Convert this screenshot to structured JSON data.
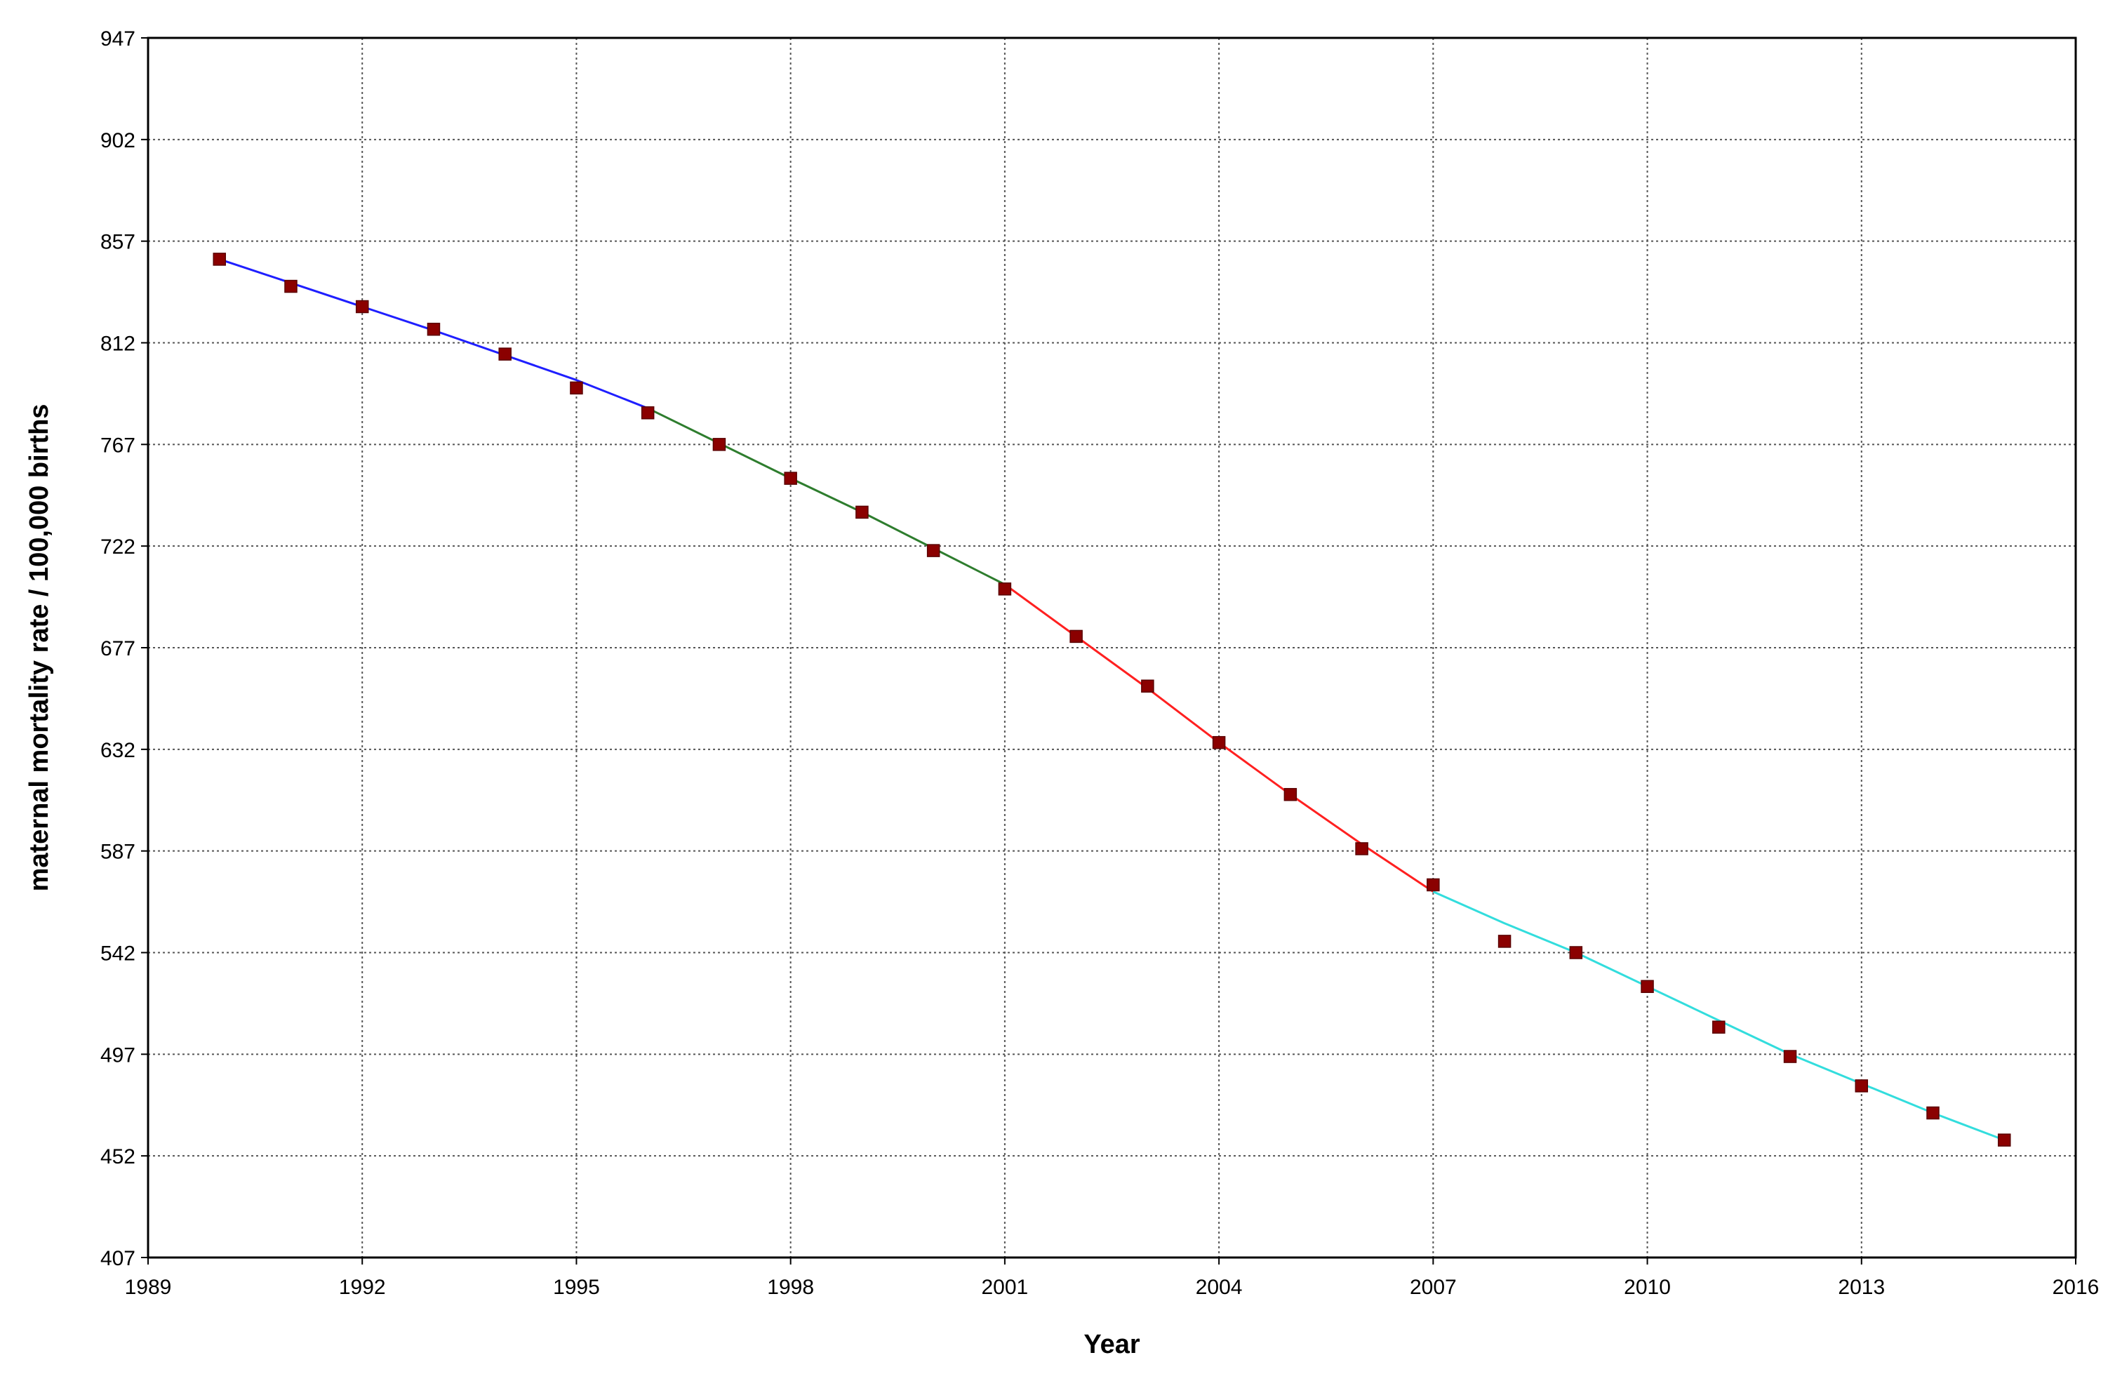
{
  "chart_data": {
    "type": "line",
    "title": "",
    "xlabel": "Year",
    "ylabel": "maternal mortality rate / 100,000 births",
    "xlim": [
      1989,
      2016
    ],
    "ylim": [
      407,
      947
    ],
    "x_ticks": [
      "1989",
      "1992",
      "1995",
      "1998",
      "2001",
      "2004",
      "2007",
      "2010",
      "2013",
      "2016"
    ],
    "y_ticks": [
      "407",
      "452",
      "497",
      "542",
      "587",
      "632",
      "677",
      "722",
      "767",
      "812",
      "857",
      "902",
      "947"
    ],
    "grid": true,
    "legend": "none",
    "marker_color": "#8b0000",
    "points": [
      {
        "x": 1990,
        "y": 849
      },
      {
        "x": 1991,
        "y": 837
      },
      {
        "x": 1992,
        "y": 828
      },
      {
        "x": 1993,
        "y": 818
      },
      {
        "x": 1994,
        "y": 807
      },
      {
        "x": 1995,
        "y": 792
      },
      {
        "x": 1996,
        "y": 781
      },
      {
        "x": 1997,
        "y": 767
      },
      {
        "x": 1998,
        "y": 752
      },
      {
        "x": 1999,
        "y": 737
      },
      {
        "x": 2000,
        "y": 720
      },
      {
        "x": 2001,
        "y": 703
      },
      {
        "x": 2002,
        "y": 682
      },
      {
        "x": 2003,
        "y": 660
      },
      {
        "x": 2004,
        "y": 635
      },
      {
        "x": 2005,
        "y": 612
      },
      {
        "x": 2006,
        "y": 588
      },
      {
        "x": 2007,
        "y": 572
      },
      {
        "x": 2008,
        "y": 547
      },
      {
        "x": 2009,
        "y": 542
      },
      {
        "x": 2010,
        "y": 527
      },
      {
        "x": 2011,
        "y": 509
      },
      {
        "x": 2012,
        "y": 496
      },
      {
        "x": 2013,
        "y": 483
      },
      {
        "x": 2014,
        "y": 471
      },
      {
        "x": 2015,
        "y": 459
      }
    ],
    "segments": [
      {
        "color": "#1f1fff",
        "points": [
          [
            1990,
            849
          ],
          [
            1991,
            838.5
          ],
          [
            1992,
            828
          ],
          [
            1993,
            817.5
          ],
          [
            1994,
            806.5
          ],
          [
            1995,
            795.5
          ],
          [
            1996,
            783
          ]
        ]
      },
      {
        "color": "#2e7d2e",
        "points": [
          [
            1996,
            783
          ],
          [
            1997,
            767.5
          ],
          [
            1998,
            752
          ],
          [
            1999,
            737
          ],
          [
            2000,
            721
          ],
          [
            2001,
            705
          ]
        ]
      },
      {
        "color": "#ff2020",
        "points": [
          [
            2001,
            705
          ],
          [
            2002,
            682
          ],
          [
            2003,
            659
          ],
          [
            2004,
            635
          ],
          [
            2005,
            612
          ],
          [
            2006,
            590
          ],
          [
            2007,
            569
          ]
        ]
      },
      {
        "color": "#33dddd",
        "points": [
          [
            2007,
            569
          ],
          [
            2008,
            555
          ],
          [
            2009,
            542
          ],
          [
            2010,
            527
          ],
          [
            2011,
            512
          ],
          [
            2012,
            497
          ],
          [
            2013,
            484
          ],
          [
            2014,
            471
          ],
          [
            2015,
            459
          ]
        ]
      }
    ]
  }
}
